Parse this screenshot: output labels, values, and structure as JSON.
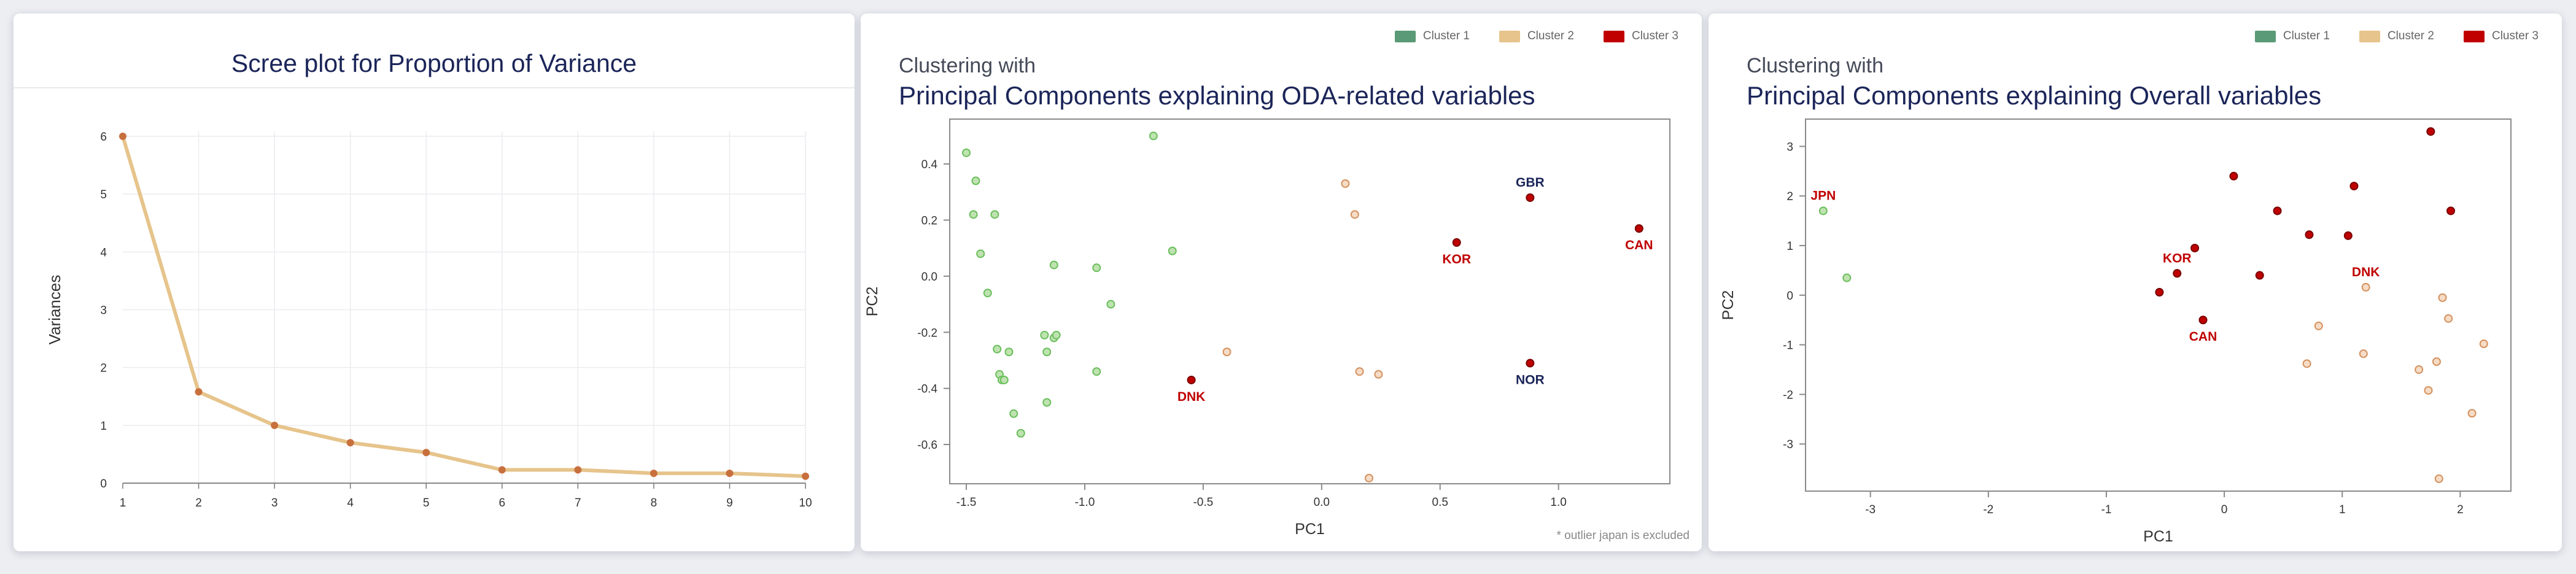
{
  "colors": {
    "cluster1": "#5b9a77",
    "cluster2": "#e6c48b",
    "cluster3": "#c00000",
    "axis_label_text": "#1b2559"
  },
  "chart_data": [
    {
      "type": "line",
      "title": "Scree plot for Proportion of Variance",
      "xlabel": "",
      "ylabel": "Variances",
      "x": [
        1,
        2,
        3,
        4,
        5,
        6,
        7,
        8,
        9,
        10
      ],
      "values": [
        6.0,
        1.58,
        1.0,
        0.7,
        0.53,
        0.23,
        0.23,
        0.17,
        0.17,
        0.12
      ],
      "xlim": [
        1,
        10
      ],
      "ylim": [
        0,
        6
      ],
      "xticks": [
        1,
        2,
        3,
        4,
        5,
        6,
        7,
        8,
        9,
        10
      ],
      "yticks": [
        0,
        1,
        2,
        3,
        4,
        5,
        6
      ],
      "grid": true
    },
    {
      "type": "scatter",
      "subtitle": "Clustering with",
      "title": "Principal Components explaining ODA-related variables",
      "xlabel": "PC1",
      "ylabel": "PC2",
      "xlim": [
        -1.57,
        1.47
      ],
      "ylim": [
        -0.74,
        0.56
      ],
      "xticks": [
        -1.5,
        -1.0,
        -0.5,
        0.0,
        0.5,
        1.0
      ],
      "xtick_labels": [
        "-1.5",
        "-1.0",
        "-0.5",
        "0.0",
        "0.5",
        "1.0"
      ],
      "yticks": [
        0.4,
        0.2,
        0.0,
        -0.2,
        -0.4,
        -0.6
      ],
      "ytick_labels": [
        "0.4",
        "0.2",
        "0.0",
        "-0.2",
        "-0.4",
        "-0.6"
      ],
      "grid": false,
      "legend": {
        "position": "top-right",
        "entries": [
          "Cluster 1",
          "Cluster 2",
          "Cluster 3"
        ]
      },
      "note": "* outlier japan is excluded",
      "series": [
        {
          "name": "Cluster 1",
          "points": [
            [
              -1.5,
              0.44
            ],
            [
              -1.46,
              0.34
            ],
            [
              -1.47,
              0.22
            ],
            [
              -1.44,
              0.08
            ],
            [
              -1.38,
              0.22
            ],
            [
              -1.41,
              -0.06
            ],
            [
              -1.37,
              -0.26
            ],
            [
              -1.36,
              -0.35
            ],
            [
              -1.35,
              -0.37
            ],
            [
              -1.34,
              -0.37
            ],
            [
              -1.32,
              -0.27
            ],
            [
              -1.3,
              -0.49
            ],
            [
              -1.27,
              -0.56
            ],
            [
              -1.17,
              -0.21
            ],
            [
              -1.16,
              -0.27
            ],
            [
              -1.16,
              -0.45
            ],
            [
              -1.13,
              -0.22
            ],
            [
              -1.12,
              -0.21
            ],
            [
              -1.13,
              0.04
            ],
            [
              -0.95,
              0.03
            ],
            [
              -0.95,
              -0.34
            ],
            [
              -0.89,
              -0.1
            ],
            [
              -0.71,
              0.5
            ],
            [
              -0.63,
              0.09
            ]
          ]
        },
        {
          "name": "Cluster 2",
          "points": [
            [
              -0.4,
              -0.27
            ],
            [
              0.1,
              0.33
            ],
            [
              0.14,
              0.22
            ],
            [
              0.16,
              -0.34
            ],
            [
              0.24,
              -0.35
            ],
            [
              0.2,
              -0.72
            ]
          ]
        },
        {
          "name": "Cluster 3",
          "points": [
            [
              -0.55,
              -0.37
            ],
            [
              0.57,
              0.12
            ],
            [
              0.88,
              0.28
            ],
            [
              0.88,
              -0.31
            ],
            [
              1.34,
              0.17
            ]
          ]
        }
      ],
      "annotations": [
        {
          "text": "GBR",
          "at": [
            0.88,
            0.28
          ],
          "color": "#1b2559"
        },
        {
          "text": "KOR",
          "at": [
            0.57,
            0.12
          ],
          "color": "#c00000"
        },
        {
          "text": "CAN",
          "at": [
            1.34,
            0.17
          ],
          "color": "#c00000"
        },
        {
          "text": "DNK",
          "at": [
            -0.55,
            -0.37
          ],
          "color": "#c00000"
        },
        {
          "text": "NOR",
          "at": [
            0.88,
            -0.31
          ],
          "color": "#1b2559"
        }
      ]
    },
    {
      "type": "scatter",
      "subtitle": "Clustering with",
      "title": "Principal Components explaining Overall variables",
      "xlabel": "PC1",
      "ylabel": "PC2",
      "xlim": [
        -3.55,
        2.43
      ],
      "ylim": [
        -3.95,
        3.55
      ],
      "xticks": [
        -3,
        -2,
        -1,
        0,
        1,
        2
      ],
      "xtick_labels": [
        "-3",
        "-2",
        "-1",
        "0",
        "1",
        "2"
      ],
      "yticks": [
        3,
        2,
        1,
        0,
        -1,
        -2,
        -3
      ],
      "ytick_labels": [
        "3",
        "2",
        "1",
        "0",
        "-1",
        "-2",
        "-3"
      ],
      "grid": false,
      "legend": {
        "position": "top-right",
        "entries": [
          "Cluster 1",
          "Cluster 2",
          "Cluster 3"
        ]
      },
      "series": [
        {
          "name": "Cluster 1",
          "points": [
            [
              -3.4,
              1.7
            ],
            [
              -3.2,
              0.35
            ]
          ]
        },
        {
          "name": "Cluster 2",
          "points": [
            [
              0.7,
              -1.38
            ],
            [
              0.8,
              -0.62
            ],
            [
              1.18,
              -1.18
            ],
            [
              1.2,
              0.16
            ],
            [
              1.65,
              -1.5
            ],
            [
              1.73,
              -1.92
            ],
            [
              1.8,
              -1.34
            ],
            [
              1.82,
              -3.7
            ],
            [
              1.85,
              -0.05
            ],
            [
              1.9,
              -0.47
            ],
            [
              2.1,
              -2.38
            ],
            [
              2.2,
              -0.98
            ]
          ]
        },
        {
          "name": "Cluster 3",
          "points": [
            [
              -0.55,
              0.06
            ],
            [
              -0.4,
              0.44
            ],
            [
              -0.25,
              0.95
            ],
            [
              -0.18,
              -0.5
            ],
            [
              0.08,
              2.4
            ],
            [
              0.3,
              0.4
            ],
            [
              0.45,
              1.7
            ],
            [
              0.72,
              1.22
            ],
            [
              1.05,
              1.2
            ],
            [
              1.1,
              2.2
            ],
            [
              1.75,
              3.3
            ],
            [
              1.92,
              1.7
            ]
          ]
        }
      ],
      "annotations": [
        {
          "text": "JPN",
          "at": [
            -3.4,
            1.7
          ],
          "color": "#c00000"
        },
        {
          "text": "KOR",
          "at": [
            -0.4,
            0.44
          ],
          "color": "#c00000"
        },
        {
          "text": "CAN",
          "at": [
            -0.18,
            -0.5
          ],
          "color": "#c00000"
        },
        {
          "text": "DNK",
          "at": [
            1.2,
            0.16
          ],
          "color": "#c00000"
        }
      ]
    }
  ]
}
